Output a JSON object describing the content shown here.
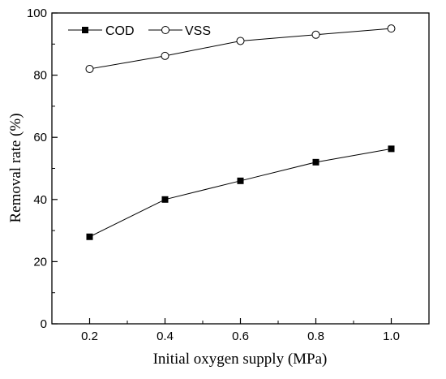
{
  "chart_data": {
    "type": "line",
    "title": "",
    "xlabel": "Initial oxygen supply (MPa)",
    "ylabel": "Removal rate (%)",
    "x": [
      0.2,
      0.4,
      0.6,
      0.8,
      1.0
    ],
    "x_tick_labels": [
      "0.2",
      "0.4",
      "0.6",
      "0.8",
      "1.0"
    ],
    "y_tick_labels": [
      "0",
      "20",
      "40",
      "60",
      "80",
      "100"
    ],
    "xlim": [
      0.1,
      1.1
    ],
    "ylim": [
      0,
      100
    ],
    "grid": false,
    "legend_position": "top-left",
    "series": [
      {
        "name": "COD",
        "marker": "filled-square",
        "color": "#000000",
        "values": [
          28,
          40,
          46,
          52,
          56.3
        ]
      },
      {
        "name": "VSS",
        "marker": "open-circle",
        "color": "#000000",
        "values": [
          82,
          86.2,
          91,
          93,
          95
        ]
      }
    ]
  }
}
